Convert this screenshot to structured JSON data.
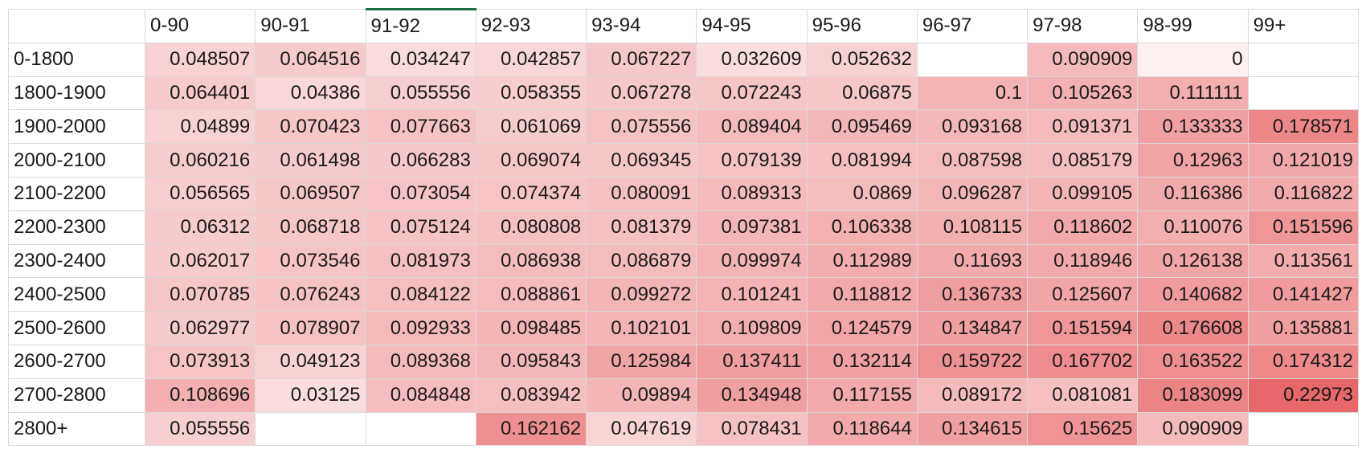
{
  "sheet": {
    "corner_label": "",
    "selected_column_header": "91-92",
    "heat_colors": {
      "low": "#fdf0f0",
      "high": "#e8676b",
      "min_value": 0,
      "max_value": 0.22973
    },
    "column_headers": [
      "0-90",
      "90-91",
      "91-92",
      "92-93",
      "93-94",
      "94-95",
      "95-96",
      "96-97",
      "97-98",
      "98-99",
      "99+"
    ],
    "rows": [
      {
        "label": "0-1800",
        "cells": [
          "0.048507",
          "0.064516",
          "0.034247",
          "0.042857",
          "0.067227",
          "0.032609",
          "0.052632",
          "",
          "0.090909",
          "0",
          ""
        ]
      },
      {
        "label": "1800-1900",
        "cells": [
          "0.064401",
          "0.04386",
          "0.055556",
          "0.058355",
          "0.067278",
          "0.072243",
          "0.06875",
          "0.1",
          "0.105263",
          "0.111111",
          ""
        ]
      },
      {
        "label": "1900-2000",
        "cells": [
          "0.04899",
          "0.070423",
          "0.077663",
          "0.061069",
          "0.075556",
          "0.089404",
          "0.095469",
          "0.093168",
          "0.091371",
          "0.133333",
          "0.178571"
        ]
      },
      {
        "label": "2000-2100",
        "cells": [
          "0.060216",
          "0.061498",
          "0.066283",
          "0.069074",
          "0.069345",
          "0.079139",
          "0.081994",
          "0.087598",
          "0.085179",
          "0.12963",
          "0.121019"
        ]
      },
      {
        "label": "2100-2200",
        "cells": [
          "0.056565",
          "0.069507",
          "0.073054",
          "0.074374",
          "0.080091",
          "0.089313",
          "0.0869",
          "0.096287",
          "0.099105",
          "0.116386",
          "0.116822"
        ]
      },
      {
        "label": "2200-2300",
        "cells": [
          "0.06312",
          "0.068718",
          "0.075124",
          "0.080808",
          "0.081379",
          "0.097381",
          "0.106338",
          "0.108115",
          "0.118602",
          "0.110076",
          "0.151596"
        ]
      },
      {
        "label": "2300-2400",
        "cells": [
          "0.062017",
          "0.073546",
          "0.081973",
          "0.086938",
          "0.086879",
          "0.099974",
          "0.112989",
          "0.11693",
          "0.118946",
          "0.126138",
          "0.113561"
        ]
      },
      {
        "label": "2400-2500",
        "cells": [
          "0.070785",
          "0.076243",
          "0.084122",
          "0.088861",
          "0.099272",
          "0.101241",
          "0.118812",
          "0.136733",
          "0.125607",
          "0.140682",
          "0.141427"
        ]
      },
      {
        "label": "2500-2600",
        "cells": [
          "0.062977",
          "0.078907",
          "0.092933",
          "0.098485",
          "0.102101",
          "0.109809",
          "0.124579",
          "0.134847",
          "0.151594",
          "0.176608",
          "0.135881"
        ]
      },
      {
        "label": "2600-2700",
        "cells": [
          "0.073913",
          "0.049123",
          "0.089368",
          "0.095843",
          "0.125984",
          "0.137411",
          "0.132114",
          "0.159722",
          "0.167702",
          "0.163522",
          "0.174312"
        ]
      },
      {
        "label": "2700-2800",
        "cells": [
          "0.108696",
          "0.03125",
          "0.084848",
          "0.083942",
          "0.09894",
          "0.134948",
          "0.117155",
          "0.089172",
          "0.081081",
          "0.183099",
          "0.22973"
        ]
      },
      {
        "label": "2800+",
        "cells": [
          "0.055556",
          "",
          "",
          "0.162162",
          "0.047619",
          "0.078431",
          "0.118644",
          "0.134615",
          "0.15625",
          "0.090909",
          ""
        ]
      }
    ]
  }
}
